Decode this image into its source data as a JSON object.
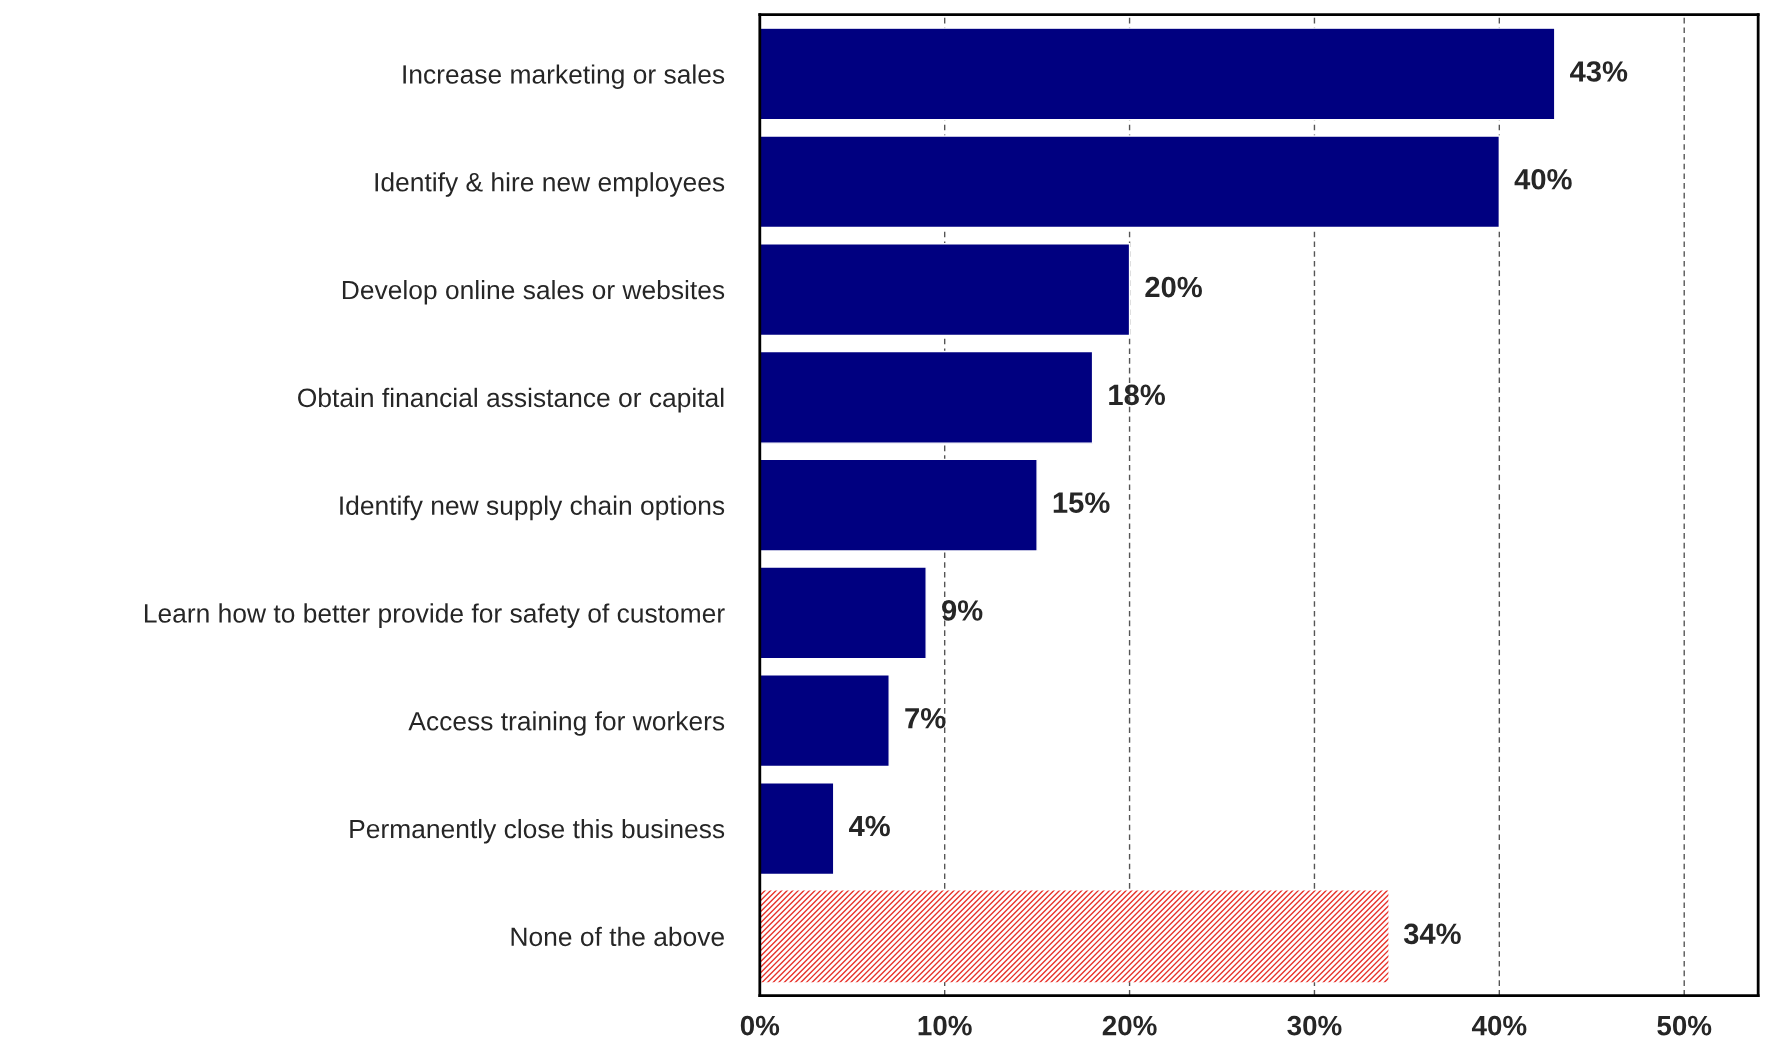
{
  "chart_data": {
    "type": "bar",
    "orientation": "horizontal",
    "categories": [
      "Increase marketing or sales",
      "Identify & hire new employees",
      "Develop online sales or websites",
      "Obtain financial assistance or capital",
      "Identify new supply chain options",
      "Learn how to better provide for safety of customer",
      "Access training for workers",
      "Permanently close this business",
      "None of the above"
    ],
    "values": [
      43,
      40,
      20,
      18,
      15,
      9,
      7,
      4,
      34
    ],
    "colors": [
      "#000080",
      "#000080",
      "#000080",
      "#000080",
      "#000080",
      "#000080",
      "#000080",
      "#000080",
      "#e8322a"
    ],
    "value_labels": [
      "43%",
      "40%",
      "20%",
      "18%",
      "15%",
      "9%",
      "7%",
      "4%",
      "34%"
    ],
    "xlim": [
      0,
      54
    ],
    "xticks": [
      {
        "value": 0,
        "label": "0%"
      },
      {
        "value": 10,
        "label": "10%"
      },
      {
        "value": 20,
        "label": "20%"
      },
      {
        "value": 30,
        "label": "30%"
      },
      {
        "value": 40,
        "label": "40%"
      },
      {
        "value": 50,
        "label": "50%"
      }
    ],
    "grid": "x",
    "legend": false
  }
}
